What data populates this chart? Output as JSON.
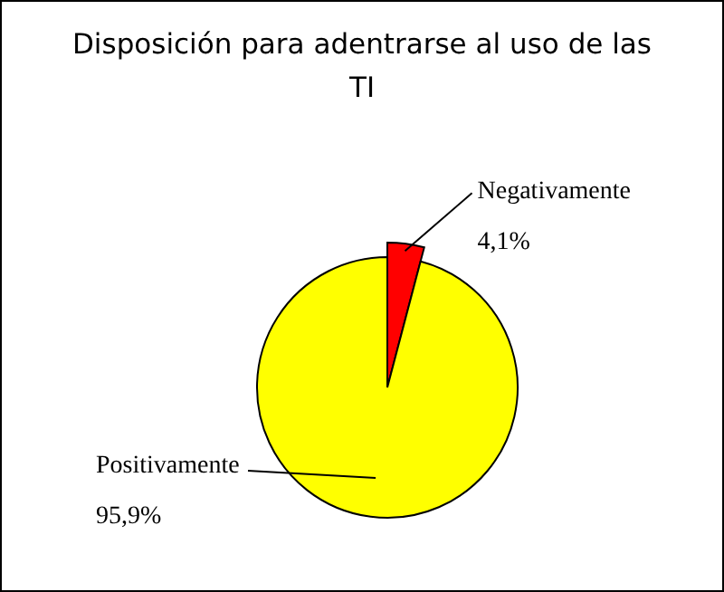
{
  "chart_data": {
    "type": "pie",
    "title": "Disposición para adentrarse al uso de las TI",
    "categories": [
      "Negativamente",
      "Positivamente"
    ],
    "values": [
      4.1,
      95.9
    ],
    "colors": [
      "#ff0000",
      "#ffff00"
    ],
    "value_labels": [
      "4,1%",
      "95,9%"
    ],
    "legend": false
  }
}
